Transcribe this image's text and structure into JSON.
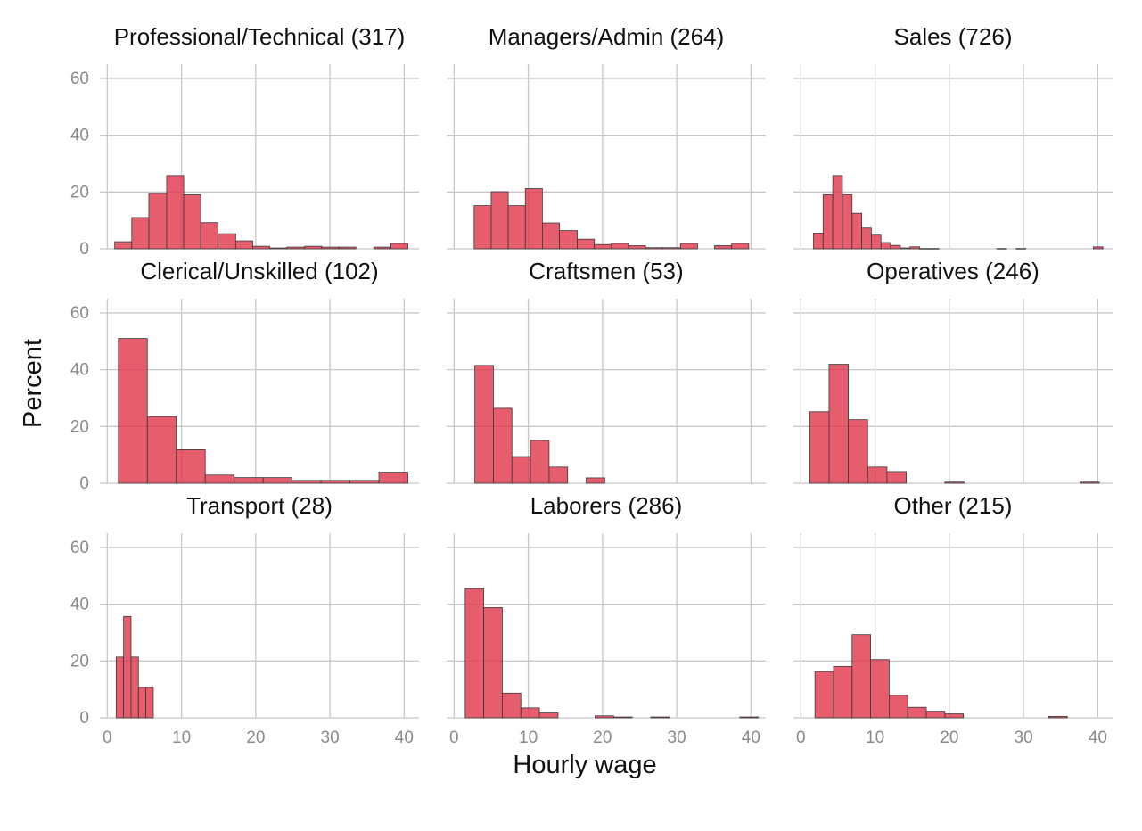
{
  "chart_data": {
    "type": "bar",
    "subtype": "faceted-histogram",
    "xlabel": "Hourly wage",
    "ylabel": "Percent",
    "xlim": [
      -1,
      42
    ],
    "ylim": [
      0,
      65
    ],
    "xticks": [
      0,
      10,
      20,
      30,
      40
    ],
    "yticks": [
      0,
      20,
      40,
      60
    ],
    "grid": true,
    "bar_color": "#E0394E",
    "panels": [
      {
        "title": "Professional/Technical (317)",
        "bars": [
          {
            "x0": 1.0,
            "x1": 3.3,
            "value": 2.5
          },
          {
            "x0": 3.3,
            "x1": 5.6,
            "value": 11
          },
          {
            "x0": 5.6,
            "x1": 8.0,
            "value": 19.5
          },
          {
            "x0": 8.0,
            "x1": 10.3,
            "value": 25.8
          },
          {
            "x0": 10.3,
            "x1": 12.6,
            "value": 19
          },
          {
            "x0": 12.6,
            "x1": 14.9,
            "value": 9.2
          },
          {
            "x0": 14.9,
            "x1": 17.3,
            "value": 5.3
          },
          {
            "x0": 17.3,
            "x1": 19.6,
            "value": 2.8
          },
          {
            "x0": 19.6,
            "x1": 21.9,
            "value": 0.9
          },
          {
            "x0": 21.9,
            "x1": 24.2,
            "value": 0.3
          },
          {
            "x0": 24.2,
            "x1": 26.6,
            "value": 0.6
          },
          {
            "x0": 26.6,
            "x1": 28.9,
            "value": 0.9
          },
          {
            "x0": 28.9,
            "x1": 31.2,
            "value": 0.6
          },
          {
            "x0": 31.2,
            "x1": 33.5,
            "value": 0.6
          },
          {
            "x0": 35.9,
            "x1": 38.2,
            "value": 0.6
          },
          {
            "x0": 38.2,
            "x1": 40.5,
            "value": 1.9
          }
        ]
      },
      {
        "title": "Managers/Admin (264)",
        "bars": [
          {
            "x0": 2.7,
            "x1": 5.0,
            "value": 15.2
          },
          {
            "x0": 5.0,
            "x1": 7.3,
            "value": 20.1
          },
          {
            "x0": 7.3,
            "x1": 9.6,
            "value": 15.2
          },
          {
            "x0": 9.6,
            "x1": 11.9,
            "value": 21.2
          },
          {
            "x0": 11.9,
            "x1": 14.2,
            "value": 9.1
          },
          {
            "x0": 14.2,
            "x1": 16.6,
            "value": 6.4
          },
          {
            "x0": 16.6,
            "x1": 18.9,
            "value": 3.4
          },
          {
            "x0": 18.9,
            "x1": 21.2,
            "value": 1.5
          },
          {
            "x0": 21.2,
            "x1": 23.5,
            "value": 1.9
          },
          {
            "x0": 23.5,
            "x1": 25.8,
            "value": 1.1
          },
          {
            "x0": 25.8,
            "x1": 28.1,
            "value": 0.4
          },
          {
            "x0": 28.1,
            "x1": 30.5,
            "value": 0.4
          },
          {
            "x0": 30.5,
            "x1": 32.8,
            "value": 1.9
          },
          {
            "x0": 35.1,
            "x1": 37.4,
            "value": 1.1
          },
          {
            "x0": 37.4,
            "x1": 39.7,
            "value": 1.9
          }
        ]
      },
      {
        "title": "Sales (726)",
        "bars": [
          {
            "x0": 1.7,
            "x1": 3.0,
            "value": 5.5
          },
          {
            "x0": 3.0,
            "x1": 4.3,
            "value": 19
          },
          {
            "x0": 4.3,
            "x1": 5.6,
            "value": 25.8
          },
          {
            "x0": 5.6,
            "x1": 6.9,
            "value": 19
          },
          {
            "x0": 6.9,
            "x1": 8.2,
            "value": 12.5
          },
          {
            "x0": 8.2,
            "x1": 9.5,
            "value": 7.3
          },
          {
            "x0": 9.5,
            "x1": 10.8,
            "value": 4.8
          },
          {
            "x0": 10.8,
            "x1": 12.1,
            "value": 2.2
          },
          {
            "x0": 12.1,
            "x1": 13.4,
            "value": 1.2
          },
          {
            "x0": 13.4,
            "x1": 14.7,
            "value": 0.3
          },
          {
            "x0": 14.7,
            "x1": 16.0,
            "value": 0.7
          },
          {
            "x0": 16.0,
            "x1": 17.3,
            "value": 0.1
          },
          {
            "x0": 17.3,
            "x1": 18.6,
            "value": 0.1
          },
          {
            "x0": 26.4,
            "x1": 27.7,
            "value": 0.1
          },
          {
            "x0": 29.0,
            "x1": 30.3,
            "value": 0.1
          },
          {
            "x0": 39.4,
            "x1": 40.7,
            "value": 0.7
          }
        ]
      },
      {
        "title": "Clerical/Unskilled (102)",
        "bars": [
          {
            "x0": 1.5,
            "x1": 5.4,
            "value": 51
          },
          {
            "x0": 5.4,
            "x1": 9.3,
            "value": 23.5
          },
          {
            "x0": 9.3,
            "x1": 13.2,
            "value": 11.8
          },
          {
            "x0": 13.2,
            "x1": 17.1,
            "value": 2.9
          },
          {
            "x0": 17.1,
            "x1": 21.0,
            "value": 2
          },
          {
            "x0": 21.0,
            "x1": 24.9,
            "value": 2
          },
          {
            "x0": 24.9,
            "x1": 28.8,
            "value": 1
          },
          {
            "x0": 28.8,
            "x1": 32.7,
            "value": 1
          },
          {
            "x0": 32.7,
            "x1": 36.6,
            "value": 1
          },
          {
            "x0": 36.6,
            "x1": 40.5,
            "value": 3.9
          }
        ]
      },
      {
        "title": "Craftsmen (53)",
        "bars": [
          {
            "x0": 2.8,
            "x1": 5.3,
            "value": 41.5
          },
          {
            "x0": 5.3,
            "x1": 7.8,
            "value": 26.4
          },
          {
            "x0": 7.8,
            "x1": 10.3,
            "value": 9.4
          },
          {
            "x0": 10.3,
            "x1": 12.8,
            "value": 15.1
          },
          {
            "x0": 12.8,
            "x1": 15.3,
            "value": 5.7
          },
          {
            "x0": 17.8,
            "x1": 20.3,
            "value": 1.9
          }
        ]
      },
      {
        "title": "Operatives (246)",
        "bars": [
          {
            "x0": 1.2,
            "x1": 3.8,
            "value": 25.2
          },
          {
            "x0": 3.8,
            "x1": 6.4,
            "value": 41.9
          },
          {
            "x0": 6.4,
            "x1": 9.0,
            "value": 22.4
          },
          {
            "x0": 9.0,
            "x1": 11.6,
            "value": 5.7
          },
          {
            "x0": 11.6,
            "x1": 14.2,
            "value": 4.1
          },
          {
            "x0": 19.4,
            "x1": 22.0,
            "value": 0.4
          },
          {
            "x0": 37.6,
            "x1": 40.2,
            "value": 0.4
          }
        ]
      },
      {
        "title": "Transport (28)",
        "bars": [
          {
            "x0": 1.2,
            "x1": 2.2,
            "value": 21.4
          },
          {
            "x0": 2.2,
            "x1": 3.2,
            "value": 35.7
          },
          {
            "x0": 3.2,
            "x1": 4.2,
            "value": 21.4
          },
          {
            "x0": 4.2,
            "x1": 5.2,
            "value": 10.7
          },
          {
            "x0": 5.2,
            "x1": 6.2,
            "value": 10.7
          }
        ]
      },
      {
        "title": "Laborers (286)",
        "bars": [
          {
            "x0": 1.5,
            "x1": 4.0,
            "value": 45.5
          },
          {
            "x0": 4.0,
            "x1": 6.5,
            "value": 38.8
          },
          {
            "x0": 6.5,
            "x1": 9.0,
            "value": 8.7
          },
          {
            "x0": 9.0,
            "x1": 11.5,
            "value": 3.5
          },
          {
            "x0": 11.5,
            "x1": 14.0,
            "value": 1.7
          },
          {
            "x0": 19.0,
            "x1": 21.5,
            "value": 0.7
          },
          {
            "x0": 21.5,
            "x1": 24.0,
            "value": 0.3
          },
          {
            "x0": 26.5,
            "x1": 29.0,
            "value": 0.3
          },
          {
            "x0": 38.5,
            "x1": 41.0,
            "value": 0.3
          }
        ]
      },
      {
        "title": "Other (215)",
        "bars": [
          {
            "x0": 1.9,
            "x1": 4.4,
            "value": 16.3
          },
          {
            "x0": 4.4,
            "x1": 6.9,
            "value": 18.1
          },
          {
            "x0": 6.9,
            "x1": 9.4,
            "value": 29.3
          },
          {
            "x0": 9.4,
            "x1": 11.9,
            "value": 20.5
          },
          {
            "x0": 11.9,
            "x1": 14.4,
            "value": 7.9
          },
          {
            "x0": 14.4,
            "x1": 16.9,
            "value": 3.7
          },
          {
            "x0": 16.9,
            "x1": 19.4,
            "value": 2.3
          },
          {
            "x0": 19.4,
            "x1": 21.9,
            "value": 1.4
          },
          {
            "x0": 33.4,
            "x1": 35.9,
            "value": 0.5
          }
        ]
      }
    ]
  }
}
